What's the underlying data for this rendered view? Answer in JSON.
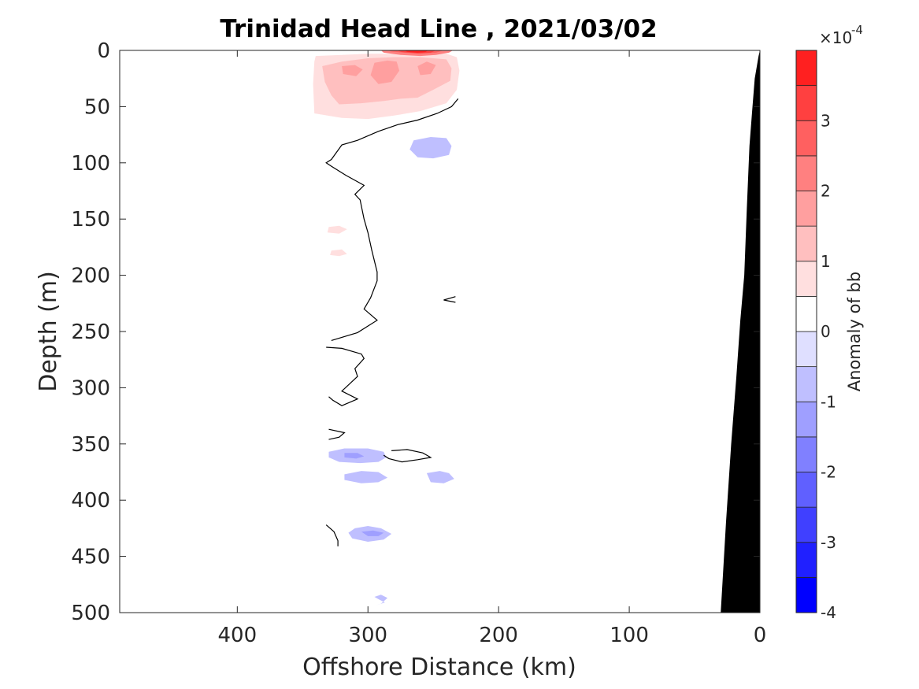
{
  "chart_data": {
    "type": "contour",
    "title": "Trinidad Head Line , 2021/03/02",
    "xlabel": "Offshore Distance (km)",
    "ylabel": "Depth (m)",
    "xlim": [
      490,
      0
    ],
    "ylim": [
      0,
      500
    ],
    "x_reversed": true,
    "y_reversed": true,
    "x_ticks": [
      400,
      300,
      200,
      100,
      0
    ],
    "y_ticks": [
      0,
      50,
      100,
      150,
      200,
      250,
      300,
      350,
      400,
      450,
      500
    ],
    "grid": false,
    "colorbar": {
      "label": "Anomaly of bb",
      "exponent_label": "×10",
      "exponent_power": "-4",
      "ticks": [
        -4,
        -3,
        -2,
        -1,
        0,
        1,
        2,
        3
      ],
      "levels": [
        -4,
        -3.5,
        -3,
        -2.5,
        -2,
        -1.5,
        -1,
        -0.5,
        0,
        0.5,
        1,
        1.5,
        2,
        2.5,
        3,
        3.5,
        4
      ],
      "colors": [
        "#0000ff",
        "#2020ff",
        "#4040ff",
        "#6060ff",
        "#8080ff",
        "#9f9fff",
        "#bfbfff",
        "#dfdfff",
        "#ffffff",
        "#ffdfdf",
        "#ffbfbf",
        "#ff9f9f",
        "#ff8080",
        "#ff6060",
        "#ff4040",
        "#ff2020"
      ]
    },
    "filled_regions": [
      {
        "level": 0.75,
        "points": [
          [
            340,
            5
          ],
          [
            320,
            4
          ],
          [
            300,
            3
          ],
          [
            280,
            3
          ],
          [
            260,
            3
          ],
          [
            240,
            3
          ],
          [
            232,
            6
          ],
          [
            230,
            18
          ],
          [
            232,
            35
          ],
          [
            240,
            47
          ],
          [
            260,
            54
          ],
          [
            280,
            58
          ],
          [
            300,
            61
          ],
          [
            320,
            60
          ],
          [
            341,
            56
          ],
          [
            342,
            30
          ],
          [
            341,
            10
          ]
        ]
      },
      {
        "level": 1.25,
        "points": [
          [
            335,
            14
          ],
          [
            320,
            10
          ],
          [
            300,
            7
          ],
          [
            280,
            6
          ],
          [
            260,
            6
          ],
          [
            240,
            8
          ],
          [
            236,
            16
          ],
          [
            237,
            27
          ],
          [
            250,
            35
          ],
          [
            262,
            42
          ],
          [
            275,
            43
          ],
          [
            288,
            45
          ],
          [
            305,
            47
          ],
          [
            322,
            48
          ],
          [
            328,
            40
          ],
          [
            333,
            28
          ]
        ]
      },
      {
        "level": 1.75,
        "points": [
          [
            295,
            11
          ],
          [
            285,
            9
          ],
          [
            278,
            10
          ],
          [
            276,
            18
          ],
          [
            282,
            28
          ],
          [
            292,
            30
          ],
          [
            298,
            22
          ]
        ]
      },
      {
        "level": 1.75,
        "points": [
          [
            320,
            14
          ],
          [
            310,
            13
          ],
          [
            304,
            17
          ],
          [
            309,
            23
          ],
          [
            319,
            21
          ]
        ]
      },
      {
        "level": 1.75,
        "points": [
          [
            262,
            14
          ],
          [
            255,
            10
          ],
          [
            248,
            13
          ],
          [
            252,
            21
          ],
          [
            260,
            22
          ]
        ]
      },
      {
        "level": 2.25,
        "points": [
          [
            290,
            0
          ],
          [
            275,
            0
          ],
          [
            260,
            0
          ],
          [
            245,
            0
          ],
          [
            235,
            0
          ],
          [
            238,
            2
          ],
          [
            248,
            4
          ],
          [
            260,
            5
          ],
          [
            275,
            4
          ],
          [
            288,
            2
          ]
        ]
      },
      {
        "level": 2.75,
        "points": [
          [
            285,
            0
          ],
          [
            272,
            0
          ],
          [
            260,
            0
          ],
          [
            248,
            0
          ],
          [
            242,
            0
          ],
          [
            248,
            2
          ],
          [
            260,
            3
          ],
          [
            272,
            2
          ],
          [
            282,
            1
          ]
        ]
      },
      {
        "level": 3.25,
        "points": [
          [
            278,
            0
          ],
          [
            265,
            0
          ],
          [
            252,
            0
          ],
          [
            248,
            0
          ],
          [
            252,
            2
          ],
          [
            262,
            2.5
          ],
          [
            274,
            1.5
          ]
        ]
      },
      {
        "level": 3.75,
        "points": [
          [
            272,
            0
          ],
          [
            262,
            0
          ],
          [
            254,
            0
          ],
          [
            256,
            1.5
          ],
          [
            262,
            2
          ],
          [
            270,
            1.2
          ]
        ]
      },
      {
        "level": -0.75,
        "points": [
          [
            265,
            80
          ],
          [
            252,
            77
          ],
          [
            240,
            78
          ],
          [
            236,
            85
          ],
          [
            238,
            93
          ],
          [
            250,
            96
          ],
          [
            262,
            95
          ],
          [
            268,
            88
          ]
        ]
      },
      {
        "level": 0.75,
        "points": [
          [
            330,
            157
          ],
          [
            322,
            156
          ],
          [
            316,
            159
          ],
          [
            322,
            163
          ],
          [
            331,
            162
          ]
        ]
      },
      {
        "level": 0.75,
        "points": [
          [
            328,
            178
          ],
          [
            320,
            177
          ],
          [
            316,
            181
          ],
          [
            322,
            183
          ],
          [
            329,
            182
          ]
        ]
      },
      {
        "level": -0.75,
        "points": [
          [
            330,
            357
          ],
          [
            318,
            354
          ],
          [
            300,
            354
          ],
          [
            288,
            357
          ],
          [
            286,
            362
          ],
          [
            292,
            366
          ],
          [
            306,
            367
          ],
          [
            322,
            366
          ],
          [
            330,
            362
          ]
        ]
      },
      {
        "level": -1.25,
        "points": [
          [
            318,
            358
          ],
          [
            308,
            358
          ],
          [
            303,
            361
          ],
          [
            309,
            363
          ],
          [
            318,
            362
          ]
        ]
      },
      {
        "level": -0.75,
        "points": [
          [
            318,
            377
          ],
          [
            305,
            374
          ],
          [
            292,
            375
          ],
          [
            285,
            380
          ],
          [
            292,
            384
          ],
          [
            305,
            385
          ],
          [
            318,
            382
          ]
        ]
      },
      {
        "level": -0.75,
        "points": [
          [
            255,
            376
          ],
          [
            245,
            374
          ],
          [
            238,
            376
          ],
          [
            234,
            381
          ],
          [
            242,
            385
          ],
          [
            252,
            384
          ]
        ]
      },
      {
        "level": -0.75,
        "points": [
          [
            310,
            425
          ],
          [
            300,
            423
          ],
          [
            290,
            425
          ],
          [
            282,
            430
          ],
          [
            288,
            435
          ],
          [
            300,
            437
          ],
          [
            312,
            434
          ],
          [
            315,
            429
          ]
        ]
      },
      {
        "level": -1.25,
        "points": [
          [
            305,
            428
          ],
          [
            296,
            427
          ],
          [
            288,
            429
          ],
          [
            292,
            432
          ],
          [
            300,
            432
          ]
        ]
      },
      {
        "level": -0.75,
        "points": [
          [
            295,
            486
          ],
          [
            290,
            484
          ],
          [
            285,
            487
          ],
          [
            290,
            492
          ],
          [
            295,
            494
          ],
          [
            287,
            491
          ],
          [
            292,
            488
          ]
        ]
      }
    ],
    "zero_contours": [
      {
        "points": [
          [
            231,
            43
          ],
          [
            236,
            50
          ],
          [
            247,
            56
          ],
          [
            262,
            62
          ],
          [
            277,
            66
          ],
          [
            292,
            72
          ],
          [
            308,
            80
          ],
          [
            320,
            84
          ],
          [
            328,
            97
          ],
          [
            332,
            100
          ],
          [
            328,
            103
          ],
          [
            317,
            111
          ],
          [
            303,
            120
          ],
          [
            310,
            128
          ],
          [
            306,
            133
          ],
          [
            303,
            150
          ],
          [
            300,
            162
          ],
          [
            297,
            178
          ],
          [
            293,
            197
          ],
          [
            293,
            205
          ],
          [
            298,
            220
          ],
          [
            303,
            230
          ],
          [
            293,
            240
          ],
          [
            308,
            251
          ],
          [
            328,
            258
          ]
        ]
      },
      {
        "points": [
          [
            332,
            264
          ],
          [
            320,
            265
          ],
          [
            305,
            270
          ],
          [
            303,
            274
          ],
          [
            310,
            283
          ],
          [
            308,
            290
          ],
          [
            320,
            303
          ],
          [
            308,
            310
          ],
          [
            320,
            316
          ],
          [
            327,
            311
          ],
          [
            330,
            308
          ]
        ]
      },
      {
        "points": [
          [
            330,
            337
          ],
          [
            318,
            340
          ],
          [
            322,
            344
          ],
          [
            330,
            346
          ]
        ]
      },
      {
        "points": [
          [
            282,
            356
          ],
          [
            270,
            355
          ],
          [
            258,
            358
          ],
          [
            252,
            362
          ],
          [
            262,
            364
          ],
          [
            274,
            366
          ],
          [
            284,
            363
          ],
          [
            288,
            360
          ]
        ]
      },
      {
        "points": [
          [
            233,
            219
          ],
          [
            242,
            222
          ],
          [
            233,
            224
          ]
        ]
      },
      {
        "points": [
          [
            332,
            422
          ],
          [
            326,
            428
          ],
          [
            323,
            436
          ],
          [
            323,
            441
          ]
        ]
      }
    ],
    "bathymetry": {
      "color": "#000000",
      "points": [
        [
          0,
          0
        ],
        [
          1,
          5
        ],
        [
          4,
          25
        ],
        [
          6,
          55
        ],
        [
          8,
          85
        ],
        [
          10,
          140
        ],
        [
          12,
          200
        ],
        [
          15,
          240
        ],
        [
          18,
          290
        ],
        [
          22,
          350
        ],
        [
          26,
          420
        ],
        [
          29,
          480
        ],
        [
          30,
          500
        ],
        [
          0,
          500
        ]
      ]
    }
  }
}
